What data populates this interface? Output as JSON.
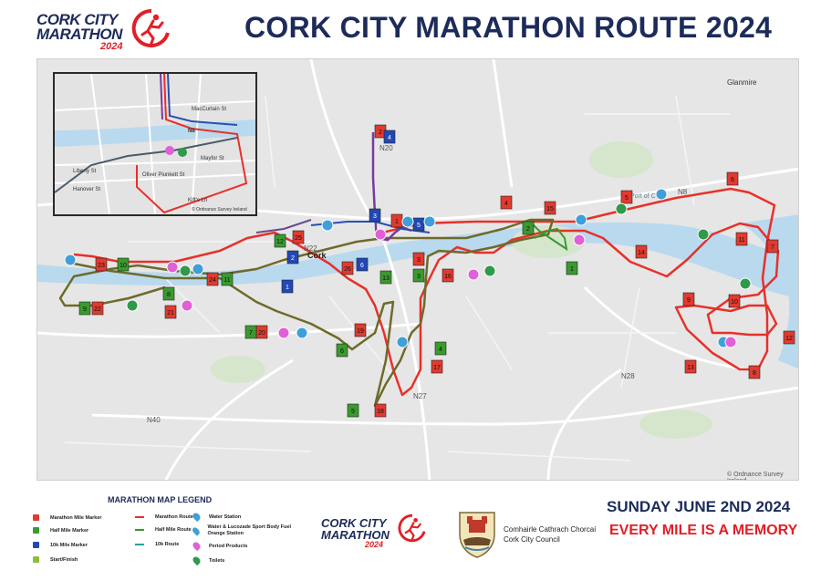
{
  "logo": {
    "line1": "CORK CITY",
    "line2": "MARATHON",
    "year": "2024"
  },
  "title": "CORK CITY MARATHON ROUTE 2024",
  "colors": {
    "navy": "#1c2b5a",
    "red": "#e21f26",
    "marathon_route": "#e8302a",
    "half_route": "#6e6a2a",
    "k10_route": "#2a4fb0",
    "marathon_marker": "#e23a2f",
    "half_marker": "#3a9a2e",
    "k10_marker": "#2148b5",
    "water": "#3f9fd8",
    "period": "#e060d8",
    "toilet": "#2f9a4a"
  },
  "map": {
    "place_labels": [
      "Cork",
      "Glanmire",
      "Port of Cork",
      "N22",
      "N27",
      "N40",
      "N28",
      "N8",
      "N20"
    ],
    "copyright": "© Ordnance Survey Ireland",
    "inset_copyright": "© Ordnance Survey Ireland",
    "inset_labels": [
      "N8",
      "MacCurtain St",
      "Mayfor St",
      "Oliver Plunkett St",
      "Liberty St",
      "Hanover St",
      "Kift's Ln"
    ],
    "marathon_miles": [
      "1",
      "2",
      "3",
      "4",
      "5",
      "6",
      "7",
      "8",
      "9",
      "10",
      "11",
      "12",
      "13",
      "14",
      "15",
      "16",
      "17",
      "18",
      "19",
      "20",
      "21",
      "22",
      "23",
      "24",
      "25",
      "26"
    ],
    "half_miles": [
      "1",
      "2",
      "3",
      "4",
      "5",
      "6",
      "7",
      "8",
      "9",
      "10",
      "11",
      "12",
      "13"
    ],
    "k10_miles": [
      "1",
      "2",
      "3",
      "4",
      "5",
      "6"
    ]
  },
  "legend": {
    "title": "MARATHON MAP LEGEND",
    "items": [
      {
        "label": "Marathon Mile Marker",
        "kind": "square",
        "color": "#e23a2f"
      },
      {
        "label": "Half Mile Marker",
        "kind": "square",
        "color": "#3a9a2e"
      },
      {
        "label": "10k Mile Marker",
        "kind": "square",
        "color": "#2148b5"
      },
      {
        "label": "Start/Finish",
        "kind": "flag",
        "color": "#8bbf3a"
      },
      {
        "label": "Marathon Route",
        "kind": "line",
        "color": "#e8302a"
      },
      {
        "label": "Half Mile Route",
        "kind": "line",
        "color": "#3a9a2e"
      },
      {
        "label": "10k Route",
        "kind": "line",
        "color": "#2aa0a0"
      },
      {
        "label": "Water Station",
        "kind": "pin",
        "color": "#3f9fd8"
      },
      {
        "label": "Water & Lucozade Sport Body Fuel Orange Station",
        "kind": "pin",
        "color": "#3f9fd8"
      },
      {
        "label": "Period Products",
        "kind": "pin",
        "color": "#e060d8"
      },
      {
        "label": "Toilets",
        "kind": "pin",
        "color": "#2f9a4a"
      }
    ]
  },
  "footer": {
    "logo_line1": "CORK CITY",
    "logo_line2": "MARATHON",
    "logo_year": "2024",
    "council_line1": "Comhairle Cathrach Chorcaí",
    "council_line2": "Cork City Council",
    "date": "SUNDAY JUNE 2ND 2024",
    "tagline": "EVERY MILE IS A MEMORY"
  }
}
